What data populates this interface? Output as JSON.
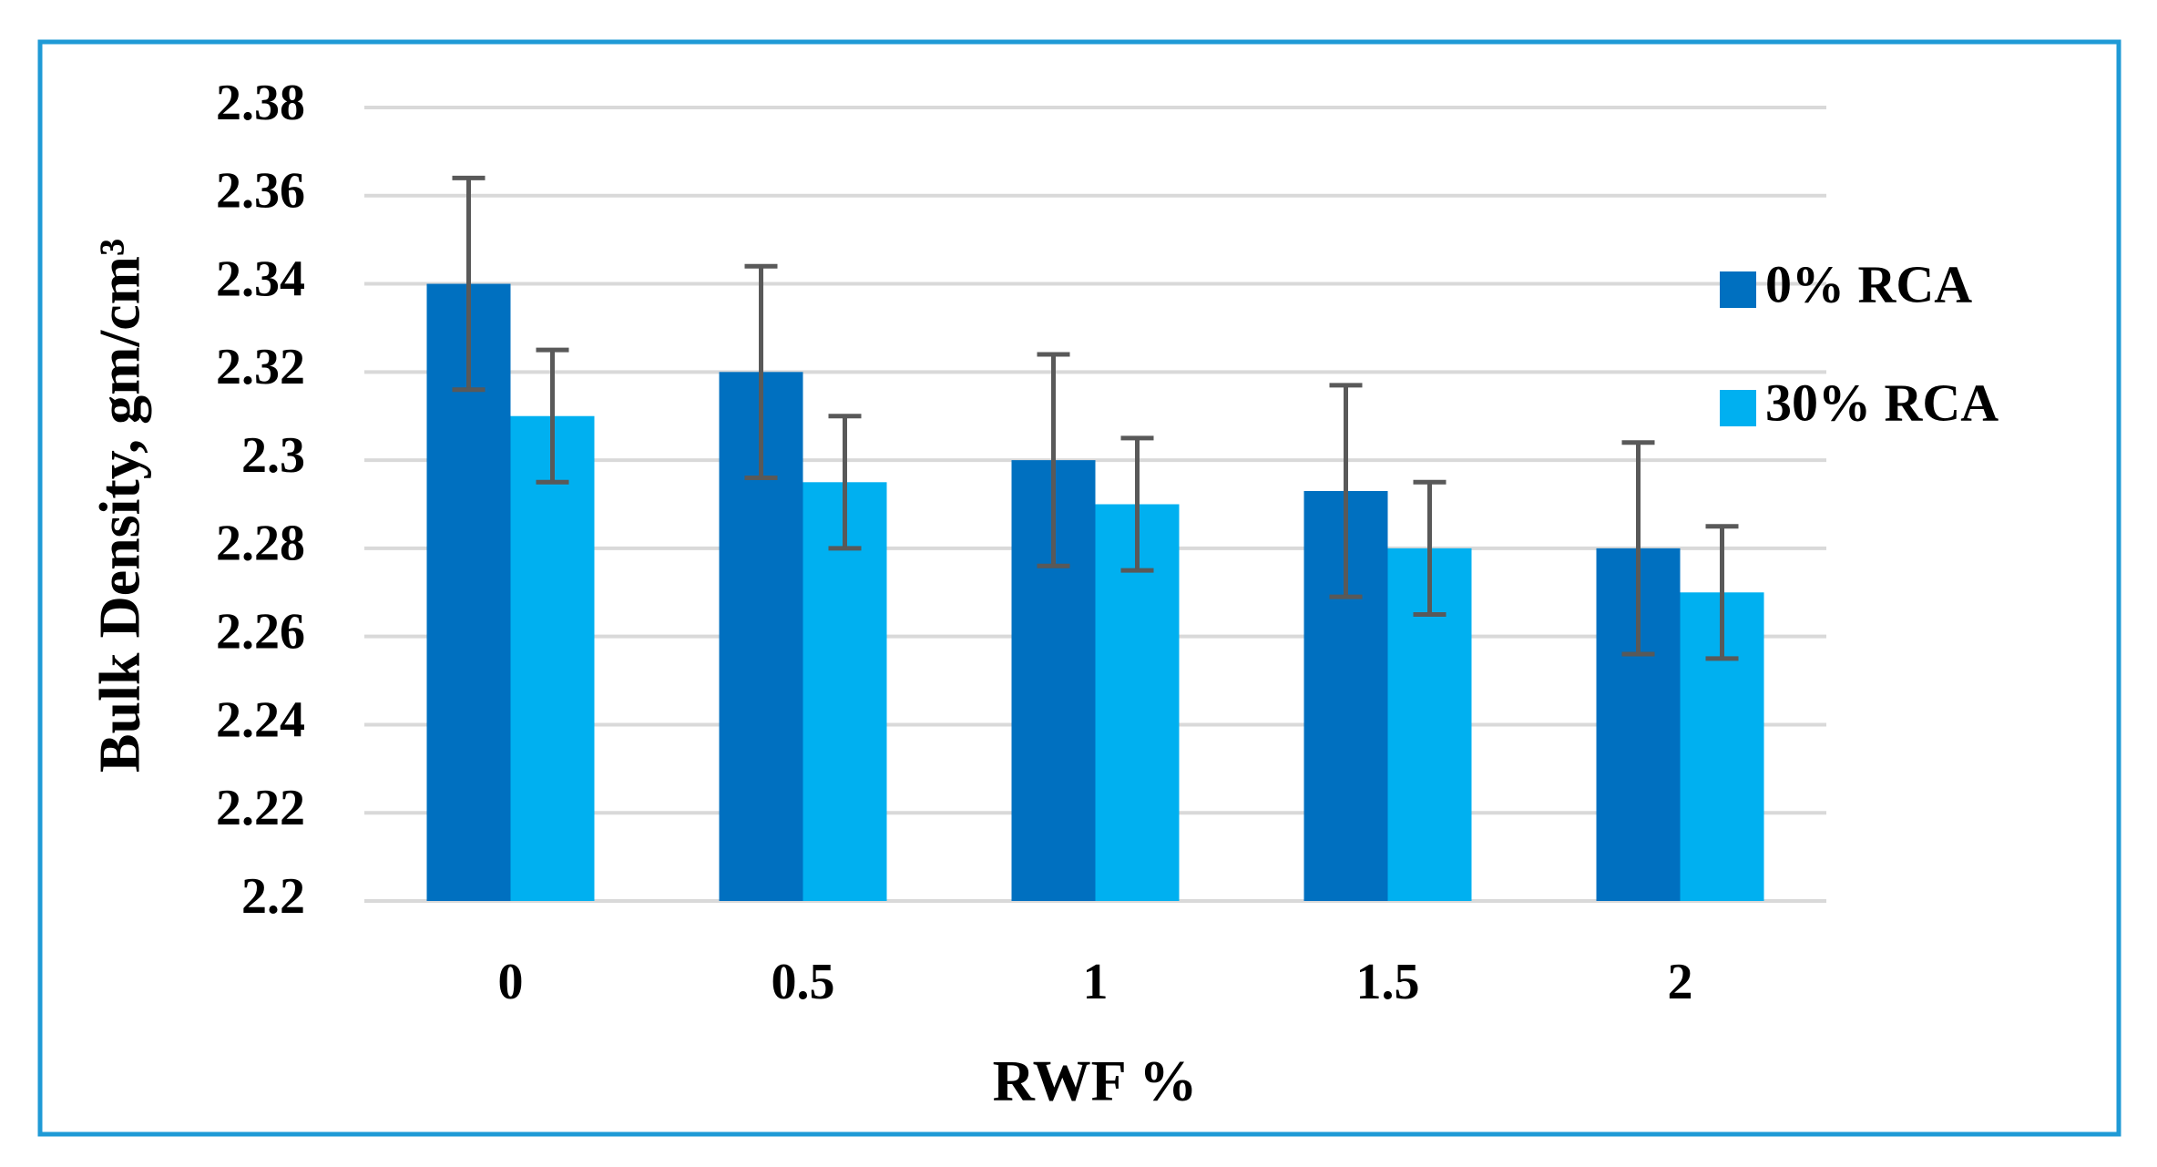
{
  "chart_data": {
    "type": "bar",
    "x_label": "RWF %",
    "y_label": "Bulk Density, gm/cm³",
    "categories": [
      "0",
      "0.5",
      "1",
      "1.5",
      "2"
    ],
    "series": [
      {
        "name": "0% RCA",
        "color": "#0070c0",
        "values": [
          2.34,
          2.32,
          2.3,
          2.293,
          2.28
        ],
        "errors": [
          0.024,
          0.024,
          0.024,
          0.024,
          0.024
        ]
      },
      {
        "name": "30% RCA",
        "color": "#00b0f0",
        "values": [
          2.31,
          2.295,
          2.29,
          2.28,
          2.27
        ],
        "errors": [
          0.015,
          0.015,
          0.015,
          0.015,
          0.015
        ]
      }
    ],
    "ylim": [
      2.2,
      2.38
    ],
    "yticks": [
      2.2,
      2.22,
      2.24,
      2.26,
      2.28,
      2.3,
      2.32,
      2.34,
      2.36,
      2.38
    ],
    "grid": true,
    "legend": "right"
  }
}
